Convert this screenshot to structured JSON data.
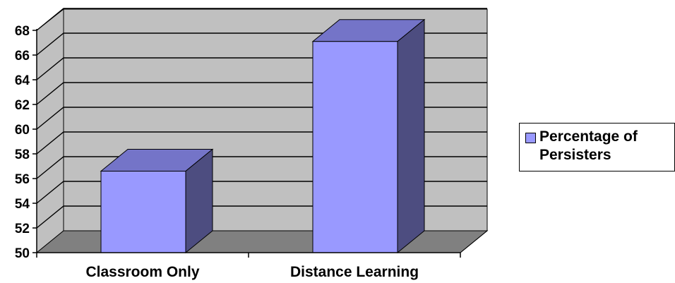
{
  "chart_data": {
    "type": "bar",
    "title": "",
    "xlabel": "",
    "ylabel": "",
    "categories": [
      "Classroom Only",
      "Distance Learning"
    ],
    "series": [
      {
        "name": "Percentage of Persisters",
        "values": [
          56.6,
          67.1
        ],
        "color": "#9999ff"
      }
    ],
    "ylim": [
      50,
      68
    ],
    "yticks": [
      "50",
      "52",
      "54",
      "56",
      "58",
      "60",
      "62",
      "64",
      "66",
      "68"
    ],
    "grid": true,
    "legend_position": "right",
    "style": "3d",
    "colors": {
      "wall": "#c0c0c0",
      "floor": "#808080",
      "bar_front": "#9999ff",
      "bar_top": "#7474c8",
      "bar_side": "#4d4d80"
    }
  },
  "legend": {
    "label": "Percentage of Persisters"
  }
}
